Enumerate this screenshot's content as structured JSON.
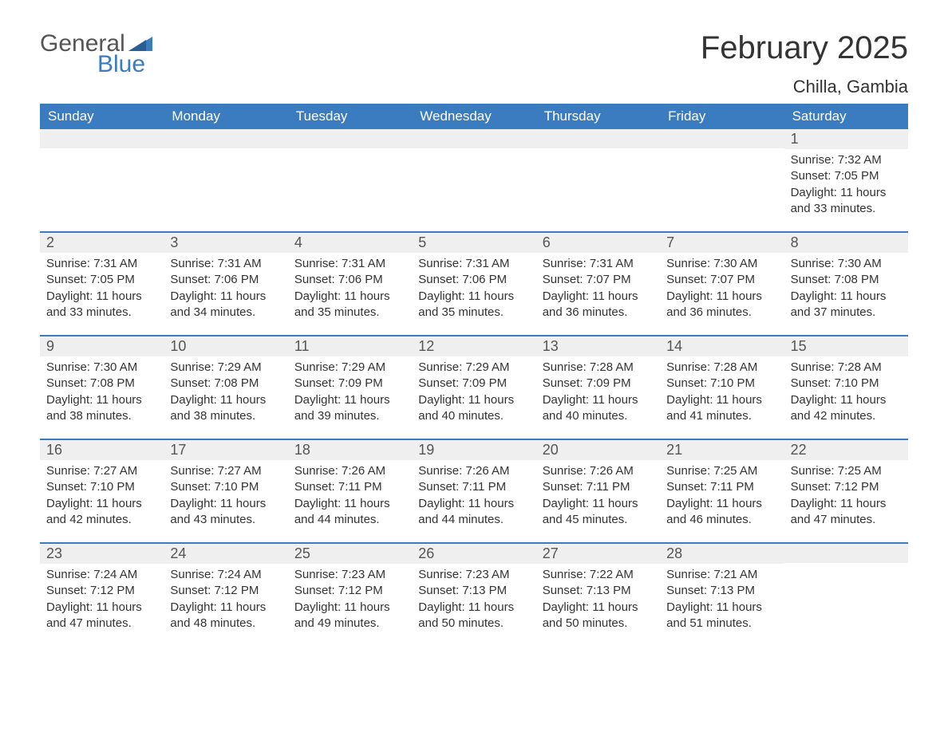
{
  "brand": {
    "general": "General",
    "blue": "Blue"
  },
  "title": "February 2025",
  "location": "Chilla, Gambia",
  "colors": {
    "header_bg": "#3b7bbf",
    "header_text": "#ffffff",
    "strip_bg": "#efefef",
    "body_text": "#333333",
    "rule": "#3b7bbf"
  },
  "fonts": {
    "title_size": 40,
    "location_size": 22,
    "head_size": 17,
    "body_size": 15,
    "daynum_size": 18
  },
  "columns": [
    "Sunday",
    "Monday",
    "Tuesday",
    "Wednesday",
    "Thursday",
    "Friday",
    "Saturday"
  ],
  "weeks": [
    [
      null,
      null,
      null,
      null,
      null,
      null,
      {
        "day": "1",
        "sunrise": "Sunrise: 7:32 AM",
        "sunset": "Sunset: 7:05 PM",
        "daylight1": "Daylight: 11 hours",
        "daylight2": "and 33 minutes."
      }
    ],
    [
      {
        "day": "2",
        "sunrise": "Sunrise: 7:31 AM",
        "sunset": "Sunset: 7:05 PM",
        "daylight1": "Daylight: 11 hours",
        "daylight2": "and 33 minutes."
      },
      {
        "day": "3",
        "sunrise": "Sunrise: 7:31 AM",
        "sunset": "Sunset: 7:06 PM",
        "daylight1": "Daylight: 11 hours",
        "daylight2": "and 34 minutes."
      },
      {
        "day": "4",
        "sunrise": "Sunrise: 7:31 AM",
        "sunset": "Sunset: 7:06 PM",
        "daylight1": "Daylight: 11 hours",
        "daylight2": "and 35 minutes."
      },
      {
        "day": "5",
        "sunrise": "Sunrise: 7:31 AM",
        "sunset": "Sunset: 7:06 PM",
        "daylight1": "Daylight: 11 hours",
        "daylight2": "and 35 minutes."
      },
      {
        "day": "6",
        "sunrise": "Sunrise: 7:31 AM",
        "sunset": "Sunset: 7:07 PM",
        "daylight1": "Daylight: 11 hours",
        "daylight2": "and 36 minutes."
      },
      {
        "day": "7",
        "sunrise": "Sunrise: 7:30 AM",
        "sunset": "Sunset: 7:07 PM",
        "daylight1": "Daylight: 11 hours",
        "daylight2": "and 36 minutes."
      },
      {
        "day": "8",
        "sunrise": "Sunrise: 7:30 AM",
        "sunset": "Sunset: 7:08 PM",
        "daylight1": "Daylight: 11 hours",
        "daylight2": "and 37 minutes."
      }
    ],
    [
      {
        "day": "9",
        "sunrise": "Sunrise: 7:30 AM",
        "sunset": "Sunset: 7:08 PM",
        "daylight1": "Daylight: 11 hours",
        "daylight2": "and 38 minutes."
      },
      {
        "day": "10",
        "sunrise": "Sunrise: 7:29 AM",
        "sunset": "Sunset: 7:08 PM",
        "daylight1": "Daylight: 11 hours",
        "daylight2": "and 38 minutes."
      },
      {
        "day": "11",
        "sunrise": "Sunrise: 7:29 AM",
        "sunset": "Sunset: 7:09 PM",
        "daylight1": "Daylight: 11 hours",
        "daylight2": "and 39 minutes."
      },
      {
        "day": "12",
        "sunrise": "Sunrise: 7:29 AM",
        "sunset": "Sunset: 7:09 PM",
        "daylight1": "Daylight: 11 hours",
        "daylight2": "and 40 minutes."
      },
      {
        "day": "13",
        "sunrise": "Sunrise: 7:28 AM",
        "sunset": "Sunset: 7:09 PM",
        "daylight1": "Daylight: 11 hours",
        "daylight2": "and 40 minutes."
      },
      {
        "day": "14",
        "sunrise": "Sunrise: 7:28 AM",
        "sunset": "Sunset: 7:10 PM",
        "daylight1": "Daylight: 11 hours",
        "daylight2": "and 41 minutes."
      },
      {
        "day": "15",
        "sunrise": "Sunrise: 7:28 AM",
        "sunset": "Sunset: 7:10 PM",
        "daylight1": "Daylight: 11 hours",
        "daylight2": "and 42 minutes."
      }
    ],
    [
      {
        "day": "16",
        "sunrise": "Sunrise: 7:27 AM",
        "sunset": "Sunset: 7:10 PM",
        "daylight1": "Daylight: 11 hours",
        "daylight2": "and 42 minutes."
      },
      {
        "day": "17",
        "sunrise": "Sunrise: 7:27 AM",
        "sunset": "Sunset: 7:10 PM",
        "daylight1": "Daylight: 11 hours",
        "daylight2": "and 43 minutes."
      },
      {
        "day": "18",
        "sunrise": "Sunrise: 7:26 AM",
        "sunset": "Sunset: 7:11 PM",
        "daylight1": "Daylight: 11 hours",
        "daylight2": "and 44 minutes."
      },
      {
        "day": "19",
        "sunrise": "Sunrise: 7:26 AM",
        "sunset": "Sunset: 7:11 PM",
        "daylight1": "Daylight: 11 hours",
        "daylight2": "and 44 minutes."
      },
      {
        "day": "20",
        "sunrise": "Sunrise: 7:26 AM",
        "sunset": "Sunset: 7:11 PM",
        "daylight1": "Daylight: 11 hours",
        "daylight2": "and 45 minutes."
      },
      {
        "day": "21",
        "sunrise": "Sunrise: 7:25 AM",
        "sunset": "Sunset: 7:11 PM",
        "daylight1": "Daylight: 11 hours",
        "daylight2": "and 46 minutes."
      },
      {
        "day": "22",
        "sunrise": "Sunrise: 7:25 AM",
        "sunset": "Sunset: 7:12 PM",
        "daylight1": "Daylight: 11 hours",
        "daylight2": "and 47 minutes."
      }
    ],
    [
      {
        "day": "23",
        "sunrise": "Sunrise: 7:24 AM",
        "sunset": "Sunset: 7:12 PM",
        "daylight1": "Daylight: 11 hours",
        "daylight2": "and 47 minutes."
      },
      {
        "day": "24",
        "sunrise": "Sunrise: 7:24 AM",
        "sunset": "Sunset: 7:12 PM",
        "daylight1": "Daylight: 11 hours",
        "daylight2": "and 48 minutes."
      },
      {
        "day": "25",
        "sunrise": "Sunrise: 7:23 AM",
        "sunset": "Sunset: 7:12 PM",
        "daylight1": "Daylight: 11 hours",
        "daylight2": "and 49 minutes."
      },
      {
        "day": "26",
        "sunrise": "Sunrise: 7:23 AM",
        "sunset": "Sunset: 7:13 PM",
        "daylight1": "Daylight: 11 hours",
        "daylight2": "and 50 minutes."
      },
      {
        "day": "27",
        "sunrise": "Sunrise: 7:22 AM",
        "sunset": "Sunset: 7:13 PM",
        "daylight1": "Daylight: 11 hours",
        "daylight2": "and 50 minutes."
      },
      {
        "day": "28",
        "sunrise": "Sunrise: 7:21 AM",
        "sunset": "Sunset: 7:13 PM",
        "daylight1": "Daylight: 11 hours",
        "daylight2": "and 51 minutes."
      },
      null
    ]
  ]
}
